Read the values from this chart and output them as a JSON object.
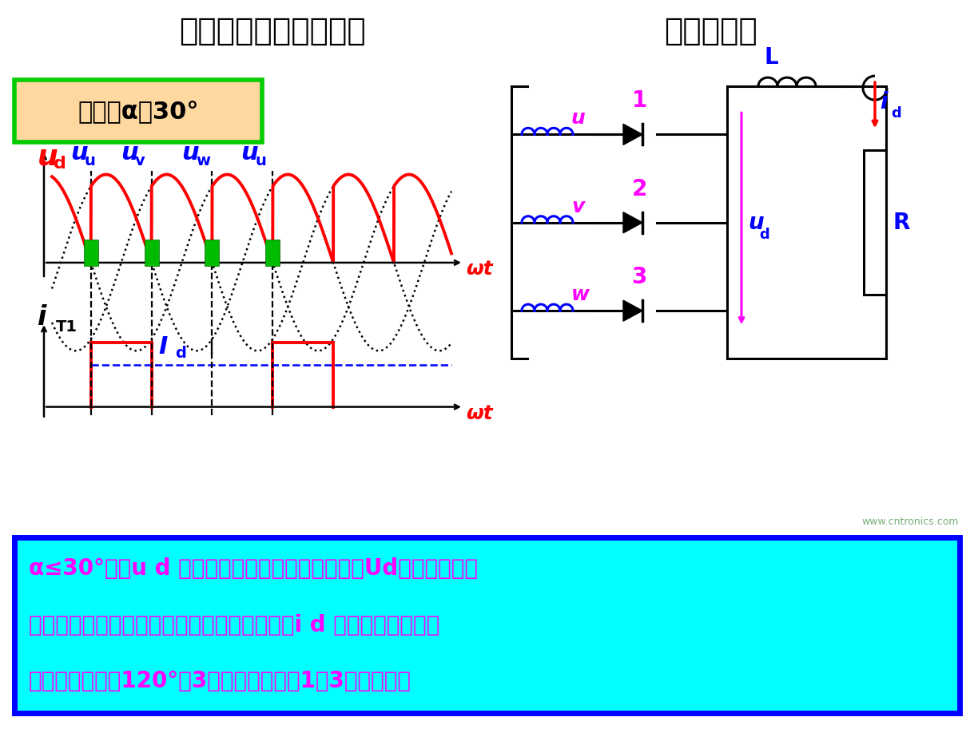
{
  "title_left": "三相半波可控整流电路",
  "title_right": "电感性负载",
  "title_bg": "#9999BB",
  "control_angle_text": "控制角α＝30°",
  "control_box_bg": "#FFD8A0",
  "control_box_border": "#00CC00",
  "body_bg": "#FFFFFF",
  "wave_color_red": "#FF0000",
  "wave_color_black": "#000000",
  "wt_color": "#FF0000",
  "label_red": "#FF0000",
  "label_blue": "#0000FF",
  "label_magenta": "#FF00FF",
  "label_black": "#000000",
  "green_rect": "#00BB00",
  "bottom_box_bg": "#00FFFF",
  "bottom_box_border": "#0000FF",
  "bottom_text_color": "#FF00FF",
  "watermark": "www.cntronics.com",
  "line1": "α≤30°时，u d 波形与纯电阻性负载波形一样，Ud计算式和纯电",
  "line2": "阻性负载一样；当电感足够大时，可近似认为i d 波形为平直波形，",
  "line3": "晶闸管导通角为120°，3个晶闸管各负担1／3的负载电流"
}
